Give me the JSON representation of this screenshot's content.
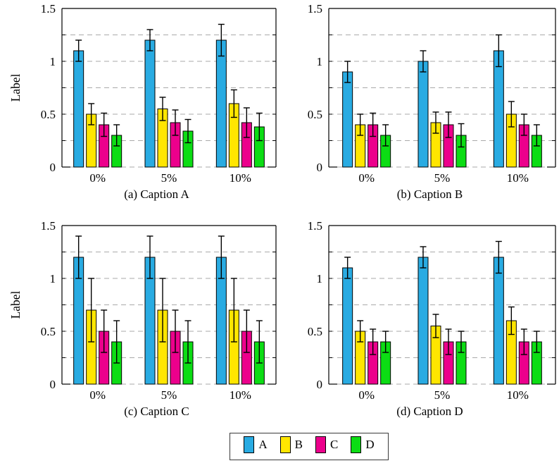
{
  "palette": {
    "A": "#29abe2",
    "B": "#ffe600",
    "C": "#ec008c",
    "D": "#0cdd14"
  },
  "style": {
    "grid_color": "#aaaaaa",
    "axis_color": "#000000",
    "error_color": "#000000",
    "background": "#ffffff"
  },
  "legend": {
    "entries": [
      {
        "label": "A"
      },
      {
        "label": "B"
      },
      {
        "label": "C"
      },
      {
        "label": "D"
      }
    ]
  },
  "chart_data": [
    {
      "id": "a",
      "type": "bar",
      "caption": "(a) Caption A",
      "ylabel": "Label",
      "ylim": [
        0,
        1.5
      ],
      "yticks": [
        0,
        0.5,
        1,
        1.5
      ],
      "ytick_labels": [
        "0",
        "0.5",
        "1",
        "1.5"
      ],
      "grid_values": [
        0.25,
        0.5,
        0.75,
        1,
        1.25
      ],
      "grid": "dashed",
      "categories": [
        "0%",
        "5%",
        "10%"
      ],
      "series": [
        {
          "name": "A",
          "values": [
            1.1,
            1.2,
            1.2
          ],
          "errors": [
            0.1,
            0.1,
            0.15
          ]
        },
        {
          "name": "B",
          "values": [
            0.5,
            0.55,
            0.6
          ],
          "errors": [
            0.1,
            0.11,
            0.13
          ]
        },
        {
          "name": "C",
          "values": [
            0.4,
            0.42,
            0.42
          ],
          "errors": [
            0.11,
            0.12,
            0.14
          ]
        },
        {
          "name": "D",
          "values": [
            0.3,
            0.34,
            0.38
          ],
          "errors": [
            0.1,
            0.11,
            0.13
          ]
        }
      ]
    },
    {
      "id": "b",
      "type": "bar",
      "caption": "(b) Caption B",
      "ylabel": "",
      "ylim": [
        0,
        1.5
      ],
      "yticks": [
        0,
        0.5,
        1,
        1.5
      ],
      "ytick_labels": [
        "0",
        "0.5",
        "1",
        "1.5"
      ],
      "grid_values": [
        0.25,
        0.5,
        0.75,
        1,
        1.25
      ],
      "grid": "dashed",
      "categories": [
        "0%",
        "5%",
        "10%"
      ],
      "series": [
        {
          "name": "A",
          "values": [
            0.9,
            1.0,
            1.1
          ],
          "errors": [
            0.1,
            0.1,
            0.15
          ]
        },
        {
          "name": "B",
          "values": [
            0.4,
            0.42,
            0.5
          ],
          "errors": [
            0.1,
            0.1,
            0.12
          ]
        },
        {
          "name": "C",
          "values": [
            0.4,
            0.4,
            0.4
          ],
          "errors": [
            0.11,
            0.12,
            0.1
          ]
        },
        {
          "name": "D",
          "values": [
            0.3,
            0.3,
            0.3
          ],
          "errors": [
            0.1,
            0.11,
            0.1
          ]
        }
      ]
    },
    {
      "id": "c",
      "type": "bar",
      "caption": "(c) Caption C",
      "ylabel": "Label",
      "ylim": [
        0,
        1.5
      ],
      "yticks": [
        0,
        0.5,
        1,
        1.5
      ],
      "ytick_labels": [
        "0",
        "0.5",
        "1",
        "1.5"
      ],
      "grid_values": [
        0.25,
        0.5,
        0.75,
        1,
        1.25
      ],
      "grid": "dashed",
      "categories": [
        "0%",
        "5%",
        "10%"
      ],
      "series": [
        {
          "name": "A",
          "values": [
            1.2,
            1.2,
            1.2
          ],
          "errors": [
            0.2,
            0.2,
            0.2
          ]
        },
        {
          "name": "B",
          "values": [
            0.7,
            0.7,
            0.7
          ],
          "errors": [
            0.3,
            0.3,
            0.3
          ]
        },
        {
          "name": "C",
          "values": [
            0.5,
            0.5,
            0.5
          ],
          "errors": [
            0.2,
            0.2,
            0.2
          ]
        },
        {
          "name": "D",
          "values": [
            0.4,
            0.4,
            0.4
          ],
          "errors": [
            0.2,
            0.2,
            0.2
          ]
        }
      ]
    },
    {
      "id": "d",
      "type": "bar",
      "caption": "(d) Caption D",
      "ylabel": "",
      "ylim": [
        0,
        1.5
      ],
      "yticks": [
        0,
        0.5,
        1,
        1.5
      ],
      "ytick_labels": [
        "0",
        "0.5",
        "1",
        "1.5"
      ],
      "grid_values": [
        0.25,
        0.5,
        0.75,
        1,
        1.25
      ],
      "grid": "dashed",
      "categories": [
        "0%",
        "5%",
        "10%"
      ],
      "series": [
        {
          "name": "A",
          "values": [
            1.1,
            1.2,
            1.2
          ],
          "errors": [
            0.1,
            0.1,
            0.15
          ]
        },
        {
          "name": "B",
          "values": [
            0.5,
            0.55,
            0.6
          ],
          "errors": [
            0.1,
            0.11,
            0.13
          ]
        },
        {
          "name": "C",
          "values": [
            0.4,
            0.4,
            0.4
          ],
          "errors": [
            0.12,
            0.12,
            0.12
          ]
        },
        {
          "name": "D",
          "values": [
            0.4,
            0.4,
            0.4
          ],
          "errors": [
            0.1,
            0.1,
            0.1
          ]
        }
      ]
    }
  ]
}
